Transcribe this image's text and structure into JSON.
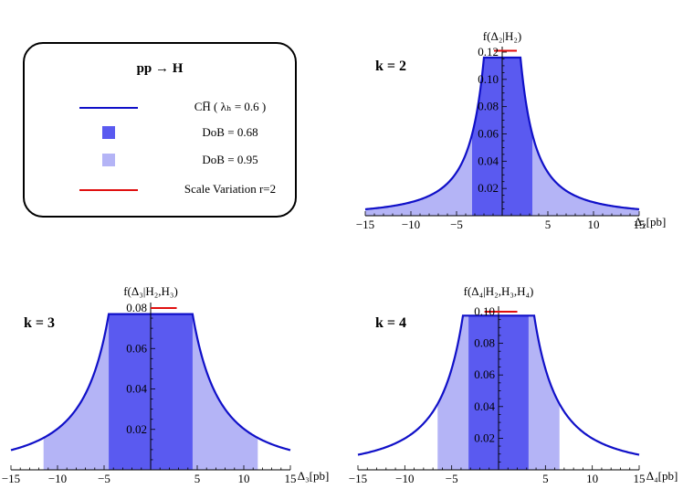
{
  "legend": {
    "title": "pp   → H",
    "items": [
      {
        "label": "CH̅ ( λₕ  = 0.6 )",
        "kind": "line",
        "color": "#1010c8"
      },
      {
        "label": "DoB = 0.68",
        "kind": "square",
        "color": "#5a5af0"
      },
      {
        "label": "DoB = 0.95",
        "kind": "square",
        "color": "#b4b4f6"
      },
      {
        "label": "Scale Variation r=2",
        "kind": "line",
        "color": "#e01010"
      }
    ]
  },
  "colors": {
    "curve": "#1010c8",
    "dob68": "#5a5af0",
    "dob95": "#b4b4f6",
    "scale": "#e01010"
  },
  "chart_data": [
    {
      "type": "area",
      "panel_label": "k = 2",
      "title": "f(Δ₂|H₂)",
      "xlabel": "Δ₂[pb]",
      "xlim": [
        -15,
        15
      ],
      "ylim": [
        0,
        0.12
      ],
      "xticks": [
        -15,
        -10,
        -5,
        5,
        10,
        15
      ],
      "yticks": [
        0.02,
        0.04,
        0.06,
        0.08,
        0.1,
        0.12
      ],
      "ytick_labels": [
        "0.02",
        "0.04",
        "0.06",
        "0.08",
        "0.10",
        "0.12"
      ],
      "plateau": [
        -2,
        2
      ],
      "peak": 0.116,
      "dob68": [
        -3.3,
        3.3
      ],
      "dob95": [
        -15,
        15
      ],
      "scale_variation": {
        "x": [
          -0.9,
          1.6
        ],
        "y": 0.121
      }
    },
    {
      "type": "area",
      "panel_label": "k = 3",
      "title": "f(Δ₃|H₂,H₃)",
      "xlabel": "Δ₃[pb]",
      "xlim": [
        -15,
        15
      ],
      "ylim": [
        0,
        0.08
      ],
      "xticks": [
        -15,
        -10,
        -5,
        5,
        10,
        15
      ],
      "yticks": [
        0.02,
        0.04,
        0.06,
        0.08
      ],
      "ytick_labels": [
        "0.02",
        "0.04",
        "0.06",
        "0.08"
      ],
      "plateau": [
        -4.5,
        4.5
      ],
      "peak": 0.077,
      "dob68": [
        -4.5,
        4.5
      ],
      "dob95": [
        -11.5,
        11.5
      ],
      "scale_variation": {
        "x": [
          0,
          2.8
        ],
        "y": 0.08
      }
    },
    {
      "type": "area",
      "panel_label": "k = 4",
      "title": "f(Δ₄|H₂,H₃,H₄)",
      "xlabel": "Δ₄[pb]",
      "xlim": [
        -15,
        15
      ],
      "ylim": [
        0,
        0.1
      ],
      "xticks": [
        -15,
        -10,
        -5,
        5,
        10,
        15
      ],
      "yticks": [
        0.02,
        0.04,
        0.06,
        0.08,
        0.1
      ],
      "ytick_labels": [
        "0.02",
        "0.04",
        "0.06",
        "0.08",
        "0.10"
      ],
      "plateau": [
        -3.8,
        3.8
      ],
      "peak": 0.0975,
      "dob68": [
        -3.2,
        3.2
      ],
      "dob95": [
        -6.5,
        6.5
      ],
      "scale_variation": {
        "x": [
          -1.5,
          2.0
        ],
        "y": 0.1
      }
    }
  ]
}
